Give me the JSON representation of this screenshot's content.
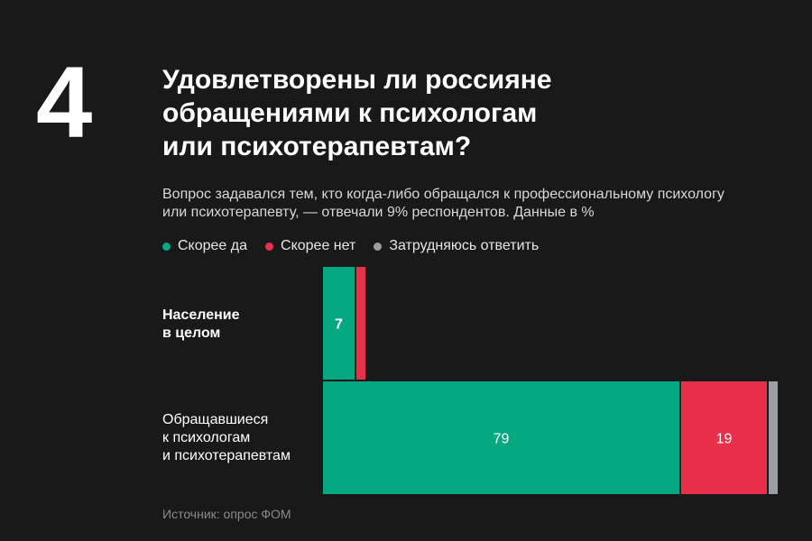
{
  "header": {
    "number": "4",
    "title": "Удовлетворены ли россияне\nобращениями к психологам\nили психотерапевтам?",
    "subtitle": "Вопрос задавался тем, кто когда-либо обращался к профессиональному психологу\nили психотерапевту, — отвечали 9% респондентов. Данные в %"
  },
  "legend": [
    {
      "label": "Скорее да",
      "color": "#06a882"
    },
    {
      "label": "Скорее нет",
      "color": "#e8304a"
    },
    {
      "label": "Затрудняюсь ответить",
      "color": "#9b9fa3"
    }
  ],
  "rows": [
    {
      "label": "Население\nв целом"
    },
    {
      "label": "Обращавшиеся\nк психологам\nи психотерапевтам"
    }
  ],
  "chart_data": {
    "type": "bar",
    "orientation": "horizontal",
    "stacked": true,
    "categories": [
      "Население\nв целом",
      "Обращавшиеся\nк психологам\nи психотерапевтам"
    ],
    "series": [
      {
        "name": "Скорее да",
        "color": "#06a882",
        "values": [
          7,
          79
        ],
        "labels": [
          "7",
          "79"
        ]
      },
      {
        "name": "Скорее нет",
        "color": "#e8304a",
        "values": [
          2,
          19
        ],
        "labels": [
          "",
          "19"
        ]
      },
      {
        "name": "Затрудняюсь ответить",
        "color": "#9b9fa3",
        "values": [
          0,
          2
        ],
        "labels": [
          "",
          ""
        ]
      }
    ],
    "xlim": [
      0,
      100
    ],
    "grid": false,
    "legend_position": "top-left"
  },
  "footer": {
    "source": "Источник: опрос ФОМ"
  }
}
